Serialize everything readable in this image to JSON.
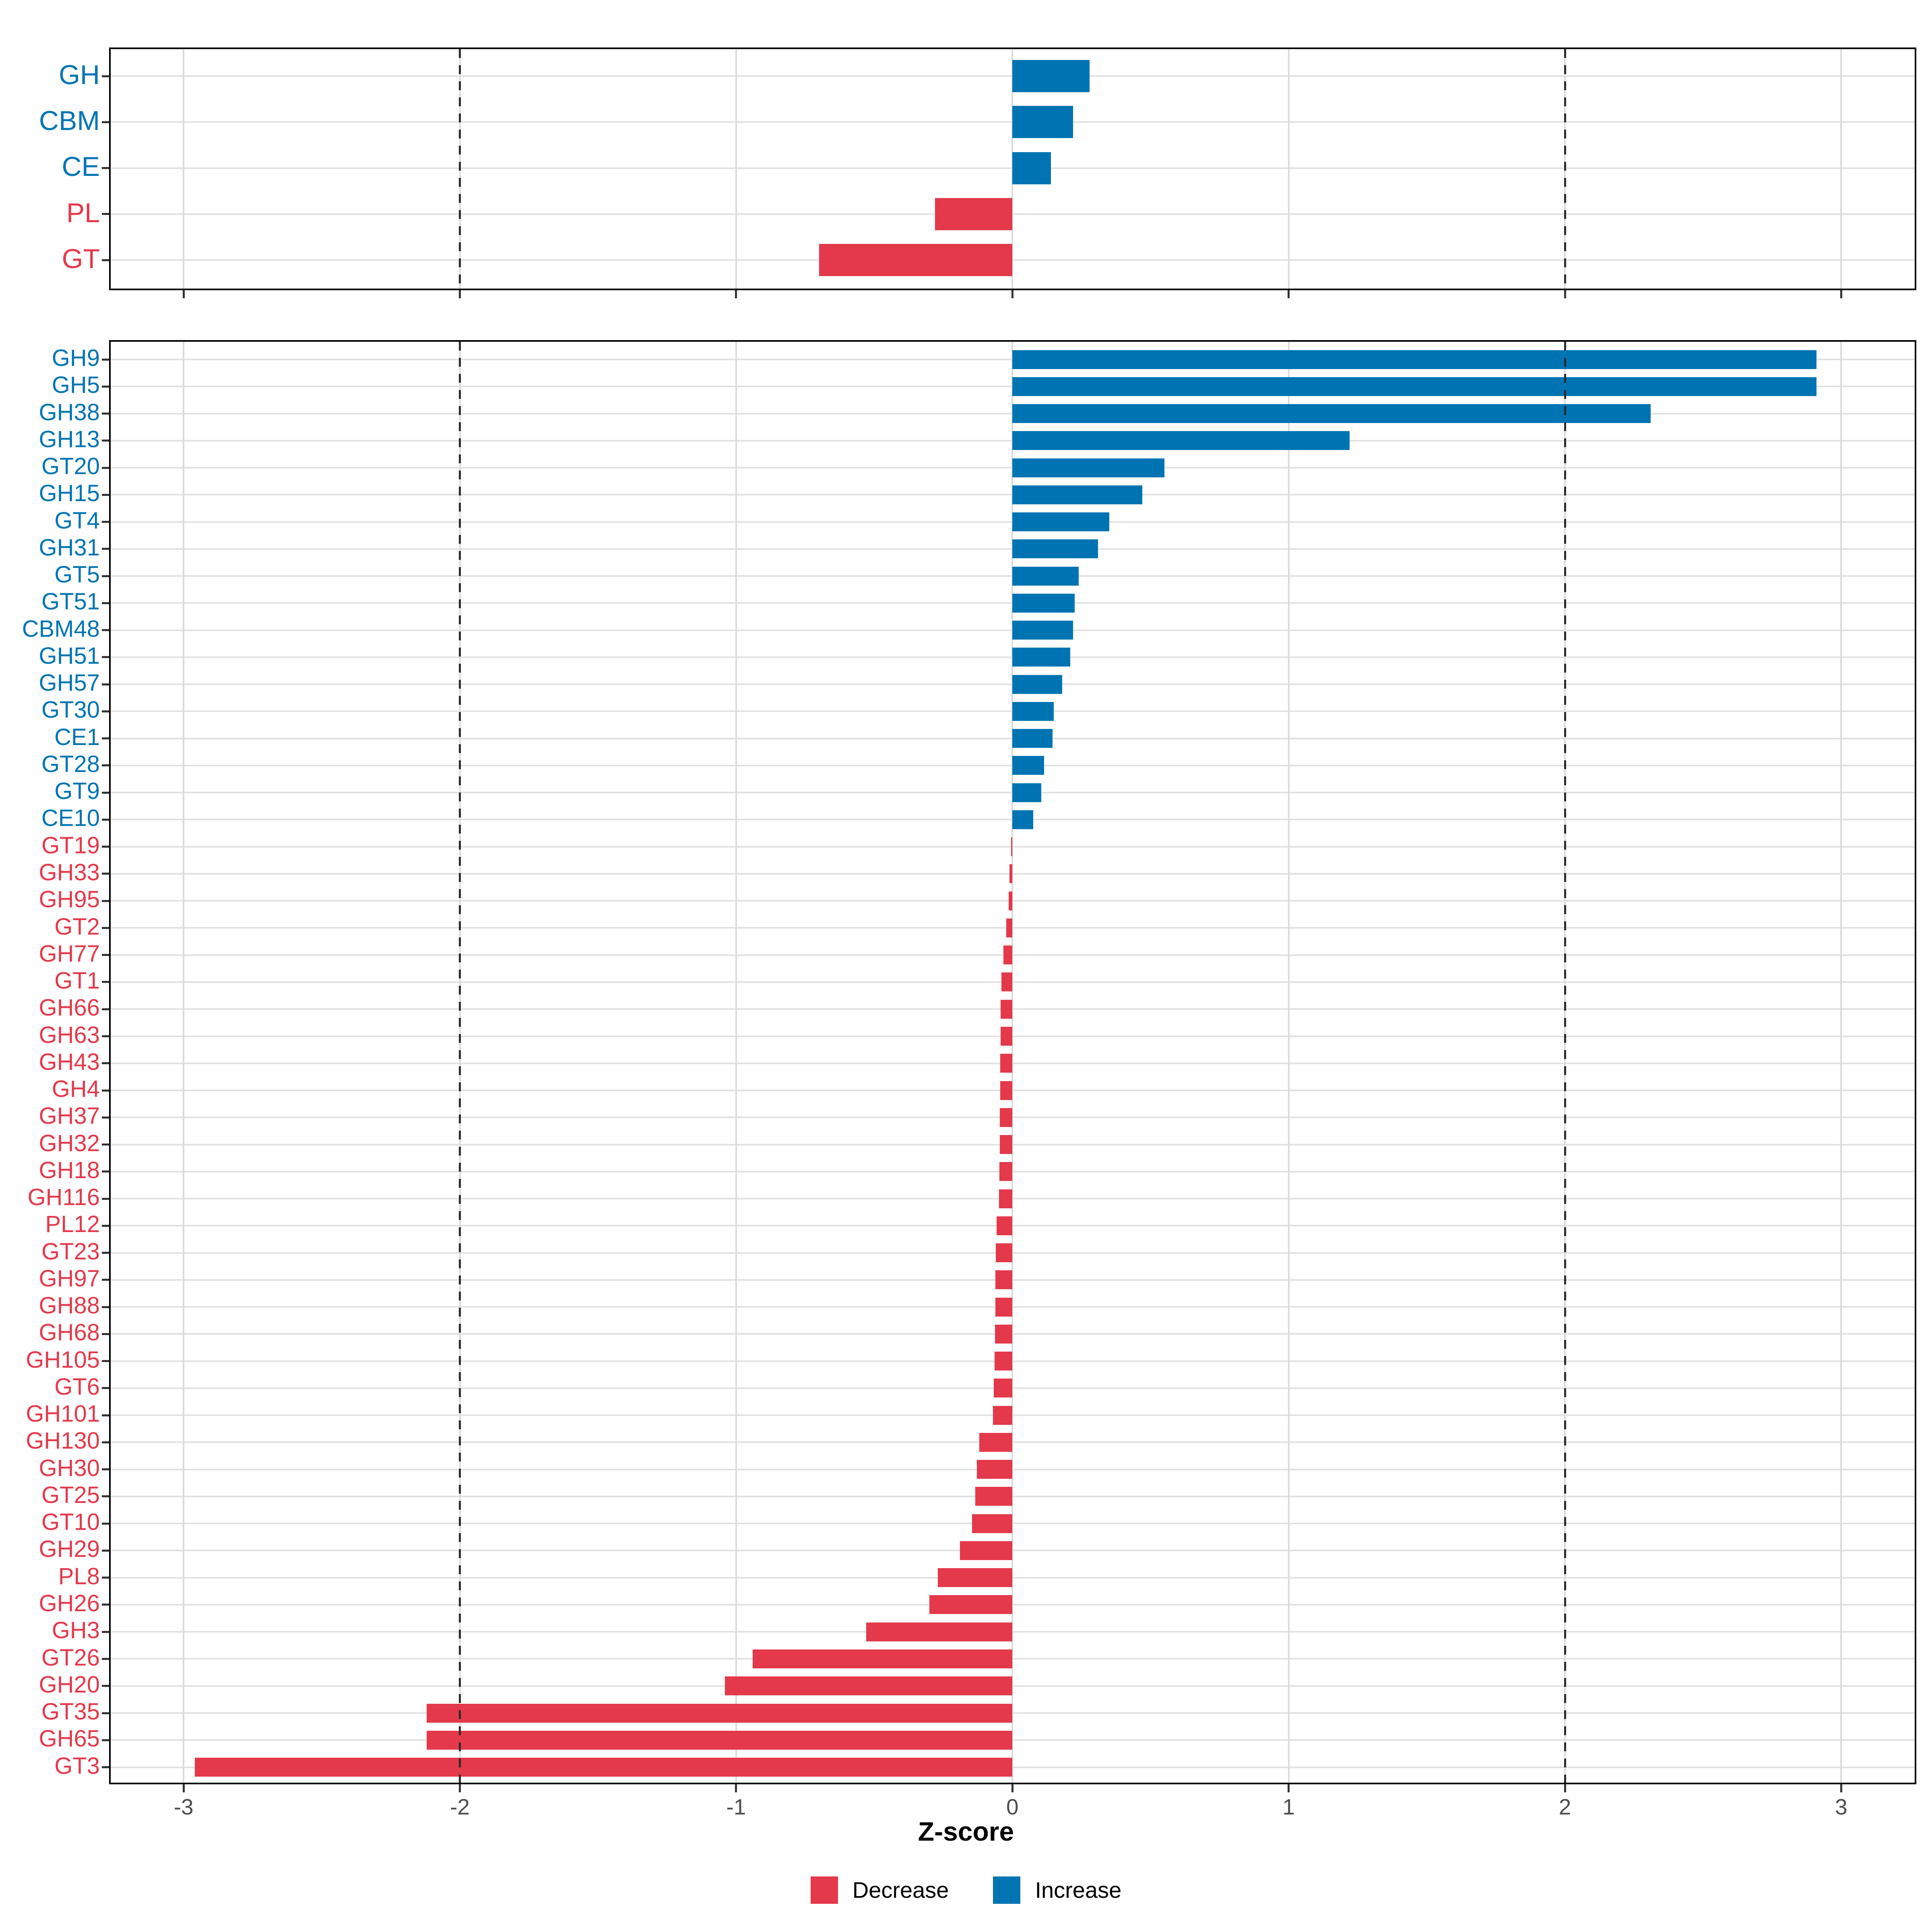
{
  "figure": {
    "background": "#ffffff"
  },
  "axis": {
    "label": "Z-score",
    "ticks": [
      -3,
      -2,
      -1,
      0,
      1,
      2,
      3
    ],
    "xmin": -3.264,
    "xmax": 3.266,
    "dashed_lines": [
      -2,
      2
    ]
  },
  "legend": {
    "items": [
      {
        "label": "Decrease",
        "color": "#E4394B"
      },
      {
        "label": "Increase",
        "color": "#0074B3"
      }
    ]
  },
  "colors": {
    "increase": "#0074B3",
    "decrease": "#E4394B",
    "grid": "#DBDBDB",
    "row_grid": "#E2E2E2",
    "tick": "#333333",
    "tick_label": "#4D4D4D",
    "dash": "#2A2A2A",
    "border": "#000000"
  },
  "chart_data": [
    {
      "type": "bar",
      "orientation": "horizontal",
      "title": "",
      "xlabel": "Z-score",
      "xlim": [
        -3.264,
        3.266
      ],
      "grid": true,
      "categories": [
        "GH",
        "CBM",
        "CE",
        "PL",
        "GT"
      ],
      "values": [
        0.28,
        0.22,
        0.14,
        -0.28,
        -0.7
      ]
    },
    {
      "type": "bar",
      "orientation": "horizontal",
      "title": "",
      "xlabel": "Z-score",
      "xlim": [
        -3.264,
        3.266
      ],
      "grid": true,
      "categories": [
        "GH9",
        "GH5",
        "GH38",
        "GH13",
        "GT20",
        "GH15",
        "GT4",
        "GH31",
        "GT5",
        "GT51",
        "CBM48",
        "GH51",
        "GH57",
        "GT30",
        "CE1",
        "GT28",
        "GT9",
        "CE10",
        "GT19",
        "GH33",
        "GH95",
        "GT2",
        "GH77",
        "GT1",
        "GH66",
        "GH63",
        "GH43",
        "GH4",
        "GH37",
        "GH32",
        "GH18",
        "GH116",
        "PL12",
        "GT23",
        "GH97",
        "GH88",
        "GH68",
        "GH105",
        "GT6",
        "GH101",
        "GH130",
        "GH30",
        "GT25",
        "GT10",
        "GH29",
        "PL8",
        "GH26",
        "GH3",
        "GT26",
        "GH20",
        "GT35",
        "GH65",
        "GT3"
      ],
      "values": [
        2.91,
        2.91,
        2.31,
        1.22,
        0.55,
        0.47,
        0.35,
        0.31,
        0.24,
        0.225,
        0.22,
        0.21,
        0.18,
        0.15,
        0.145,
        0.115,
        0.105,
        0.075,
        -0.005,
        -0.01,
        -0.013,
        -0.022,
        -0.033,
        -0.04,
        -0.042,
        -0.043,
        -0.044,
        -0.044,
        -0.045,
        -0.046,
        -0.047,
        -0.048,
        -0.058,
        -0.06,
        -0.061,
        -0.062,
        -0.063,
        -0.065,
        -0.068,
        -0.071,
        -0.12,
        -0.128,
        -0.134,
        -0.146,
        -0.19,
        -0.27,
        -0.3,
        -0.53,
        -0.94,
        -1.04,
        -2.12,
        -2.12,
        -2.96
      ]
    }
  ]
}
